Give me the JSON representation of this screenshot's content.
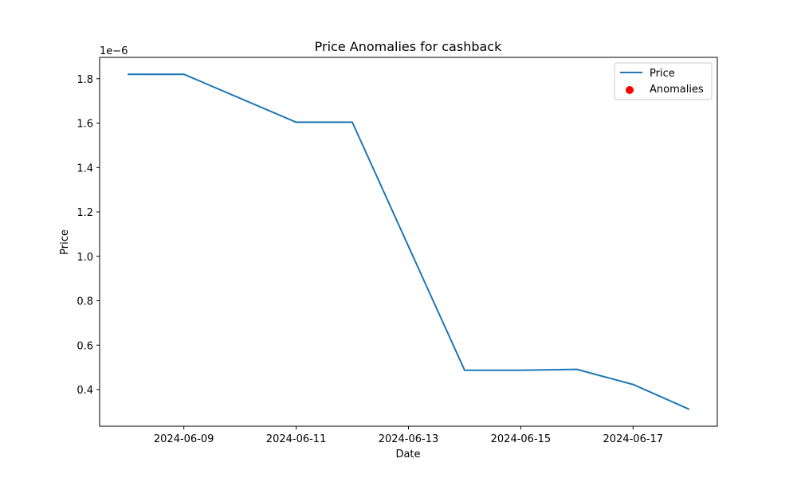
{
  "chart_data": {
    "type": "line",
    "title": "Price Anomalies for cashback",
    "xlabel": "Date",
    "ylabel": "Price",
    "y_offset_label": "1e−6",
    "x": [
      "2024-06-08",
      "2024-06-09",
      "2024-06-10",
      "2024-06-11",
      "2024-06-12",
      "2024-06-13",
      "2024-06-14",
      "2024-06-15",
      "2024-06-16",
      "2024-06-17",
      "2024-06-18"
    ],
    "series": [
      {
        "name": "Price",
        "type": "line",
        "color": "#1f77b4",
        "values": [
          1.82e-06,
          1.82e-06,
          1.712e-06,
          1.604e-06,
          1.604e-06,
          1.045e-06,
          4.87e-07,
          4.87e-07,
          4.91e-07,
          4.23e-07,
          3.11e-07
        ]
      },
      {
        "name": "Anomalies",
        "type": "scatter",
        "color": "#ff0000",
        "values": []
      }
    ],
    "xlim": [
      "2024-06-07 12:00",
      "2024-06-18 12:00"
    ],
    "ylim": [
      2.35e-07,
      1.896e-06
    ],
    "x_ticks": [
      "2024-06-09",
      "2024-06-11",
      "2024-06-13",
      "2024-06-15",
      "2024-06-17"
    ],
    "y_ticks": [
      {
        "value": 4e-07,
        "label": "0.4"
      },
      {
        "value": 6e-07,
        "label": "0.6"
      },
      {
        "value": 8e-07,
        "label": "0.8"
      },
      {
        "value": 1e-06,
        "label": "1.0"
      },
      {
        "value": 1.2e-06,
        "label": "1.2"
      },
      {
        "value": 1.4e-06,
        "label": "1.4"
      },
      {
        "value": 1.6e-06,
        "label": "1.6"
      },
      {
        "value": 1.8e-06,
        "label": "1.8"
      }
    ],
    "legend_position": "top-right",
    "grid": false
  }
}
